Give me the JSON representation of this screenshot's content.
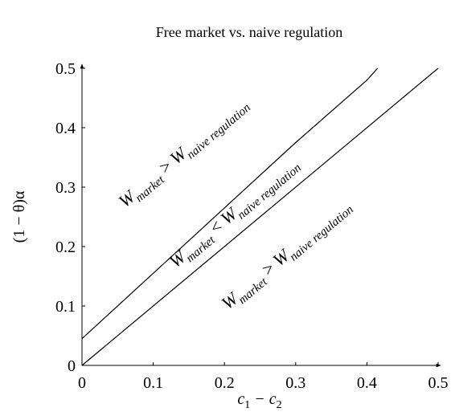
{
  "chart_data": {
    "type": "line",
    "title": "Free market vs. naive regulation",
    "x_label": [
      "c",
      "1",
      " − c",
      "2"
    ],
    "y_label": "(1 − θ)α",
    "xlim": [
      0,
      0.5
    ],
    "ylim": [
      0,
      0.5
    ],
    "xticks": [
      0,
      0.1,
      0.2,
      0.3,
      0.4,
      0.5
    ],
    "yticks": [
      0,
      0.1,
      0.2,
      0.3,
      0.4,
      0.5
    ],
    "series": [
      {
        "color": "#000000",
        "x": [
          0,
          0.1,
          0.2,
          0.3,
          0.4,
          0.415
        ],
        "values": [
          0.045,
          0.155,
          0.265,
          0.375,
          0.48,
          0.5
        ]
      },
      {
        "color": "#000000",
        "x": [
          0,
          0.5
        ],
        "values": [
          0,
          0.5
        ]
      }
    ],
    "annotations": [
      {
        "parts": [
          "W",
          "market",
          " > ",
          "W",
          "naive regulation"
        ]
      },
      {
        "parts": [
          "W",
          "market",
          " < ",
          "W",
          "naive regulation"
        ]
      },
      {
        "parts": [
          "W",
          "market",
          " > ",
          "W",
          "naive regulation"
        ]
      }
    ]
  }
}
